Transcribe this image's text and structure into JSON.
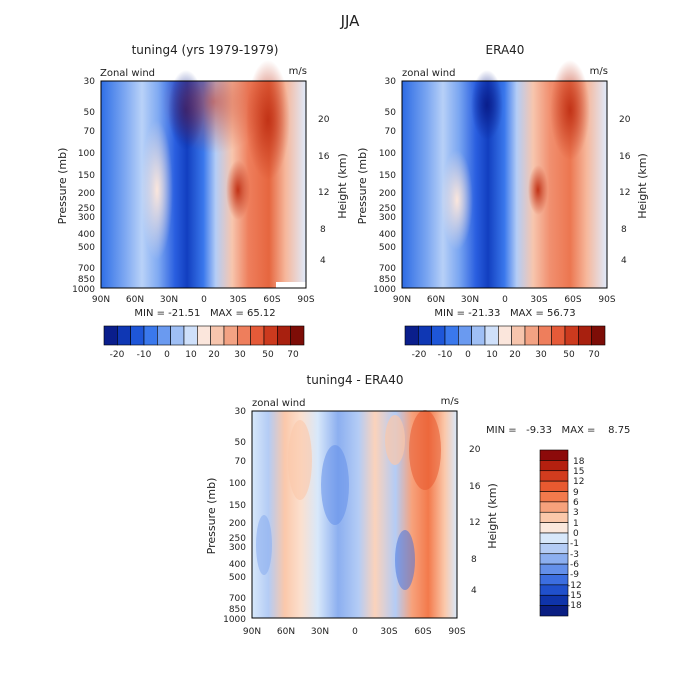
{
  "figure_title": "JJA",
  "chart_data": [
    {
      "type": "heatmap",
      "title": "tuning4 (yrs 1979-1979)",
      "variable_label": "Zonal wind",
      "units": "m/s",
      "xlabel": "",
      "ylabel": "Pressure (mb)",
      "ylabel_right": "Height (km)",
      "x_ticks": [
        "90N",
        "60N",
        "30N",
        "0",
        "30S",
        "60S",
        "90S"
      ],
      "y_ticks": [
        "30",
        "50",
        "70",
        "100",
        "150",
        "200",
        "250",
        "300",
        "400",
        "500",
        "700",
        "850",
        "1000"
      ],
      "y_right_ticks": [
        "20",
        "16",
        "12",
        "8",
        "4"
      ],
      "stats": "MIN = -21.51   MAX = 65.12",
      "min": -21.51,
      "max": 65.12,
      "colorbar_labels": [
        "-20",
        "-10",
        "0",
        "10",
        "20",
        "30",
        "50",
        "70"
      ],
      "colorbar_colors": [
        "#0a1e8c",
        "#0f37b4",
        "#1e56d8",
        "#3a78ec",
        "#6a9af0",
        "#9fbff5",
        "#cfe0fa",
        "#fbe6dc",
        "#f7c5ad",
        "#f3a283",
        "#ee7e5c",
        "#e55a38",
        "#cc3a1e",
        "#a8200f",
        "#7d0d07"
      ],
      "grid": false
    },
    {
      "type": "heatmap",
      "title": "ERA40",
      "variable_label": "zonal wind",
      "units": "m/s",
      "xlabel": "",
      "ylabel": "Pressure (mb)",
      "ylabel_right": "Height (km)",
      "x_ticks": [
        "90N",
        "60N",
        "30N",
        "0",
        "30S",
        "60S",
        "90S"
      ],
      "y_ticks": [
        "30",
        "50",
        "70",
        "100",
        "150",
        "200",
        "250",
        "300",
        "400",
        "500",
        "700",
        "850",
        "1000"
      ],
      "y_right_ticks": [
        "20",
        "16",
        "12",
        "8",
        "4"
      ],
      "stats": "MIN = -21.33   MAX = 56.73",
      "min": -21.33,
      "max": 56.73,
      "colorbar_labels": [
        "-20",
        "-10",
        "0",
        "10",
        "20",
        "30",
        "50",
        "70"
      ],
      "colorbar_colors": [
        "#0a1e8c",
        "#0f37b4",
        "#1e56d8",
        "#3a78ec",
        "#6a9af0",
        "#9fbff5",
        "#cfe0fa",
        "#fbe6dc",
        "#f7c5ad",
        "#f3a283",
        "#ee7e5c",
        "#e55a38",
        "#cc3a1e",
        "#a8200f",
        "#7d0d07"
      ],
      "grid": false
    },
    {
      "type": "heatmap",
      "title": "tuning4 - ERA40",
      "variable_label": "zonal wind",
      "units": "m/s",
      "xlabel": "",
      "ylabel": "Pressure (mb)",
      "ylabel_right": "Height (km)",
      "x_ticks": [
        "90N",
        "60N",
        "30N",
        "0",
        "30S",
        "60S",
        "90S"
      ],
      "y_ticks": [
        "30",
        "50",
        "70",
        "100",
        "150",
        "200",
        "250",
        "300",
        "400",
        "500",
        "700",
        "850",
        "1000"
      ],
      "y_right_ticks": [
        "20",
        "16",
        "12",
        "8",
        "4"
      ],
      "stats": "MIN =   -9.33   MAX =    8.75",
      "min": -9.33,
      "max": 8.75,
      "colorbar_labels": [
        "18",
        "15",
        "12",
        "9",
        "6",
        "3",
        "1",
        "0",
        "-1",
        "-3",
        "-6",
        "-9",
        "-12",
        "-15",
        "-18"
      ],
      "colorbar_colors": [
        "#8c0a0a",
        "#b4200f",
        "#d23c1e",
        "#e85a30",
        "#f37a4c",
        "#f7a27c",
        "#fbc8aa",
        "#fbe8dc",
        "#d8e8fa",
        "#b4ccf5",
        "#8caff0",
        "#6490ea",
        "#3c6ee0",
        "#2050cc",
        "#0f34aa",
        "#0a1e82"
      ],
      "grid": false
    }
  ]
}
